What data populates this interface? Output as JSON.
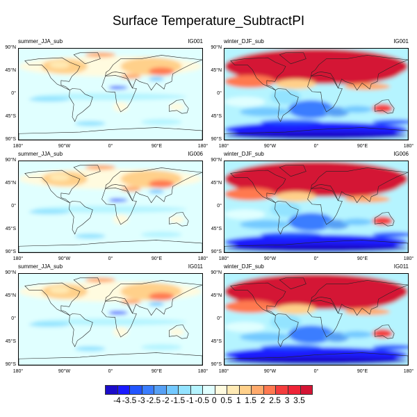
{
  "title": "Surface Temperature_SubtractPI",
  "panels": [
    {
      "title": "summer_JJA_sub",
      "code": "IG001",
      "season": "summer"
    },
    {
      "title": "winter_DJF_sub",
      "code": "IG001",
      "season": "winter"
    },
    {
      "title": "summer_JJA_sub",
      "code": "IG006",
      "season": "summer"
    },
    {
      "title": "winter_DJF_sub",
      "code": "IG006",
      "season": "winter"
    },
    {
      "title": "summer_JJA_sub",
      "code": "IG011",
      "season": "summer"
    },
    {
      "title": "winter_DJF_sub",
      "code": "IG011",
      "season": "winter"
    }
  ],
  "lat_labels": [
    "90°N",
    "45°N",
    "0°",
    "45°S",
    "90°S"
  ],
  "lon_labels": [
    "180°",
    "90°W",
    "0°",
    "90°E",
    "180°"
  ],
  "colorbar": {
    "labels": [
      "-4",
      "-3.5",
      "-3",
      "-2.5",
      "-2",
      "-1.5",
      "-1",
      "-0.5",
      "0",
      "0.5",
      "1",
      "1.5",
      "2",
      "2.5",
      "3",
      "3.5"
    ],
    "colors": [
      "#1b0cc9",
      "#1a1aff",
      "#2255ff",
      "#3a7dff",
      "#56a0f5",
      "#73c9ff",
      "#93e3ff",
      "#b5f4ff",
      "#e0ffff",
      "#fffbdf",
      "#ffeab4",
      "#ffd08a",
      "#ffaa6c",
      "#ff7950",
      "#f43d3d",
      "#ef2437",
      "#d41434"
    ]
  }
}
